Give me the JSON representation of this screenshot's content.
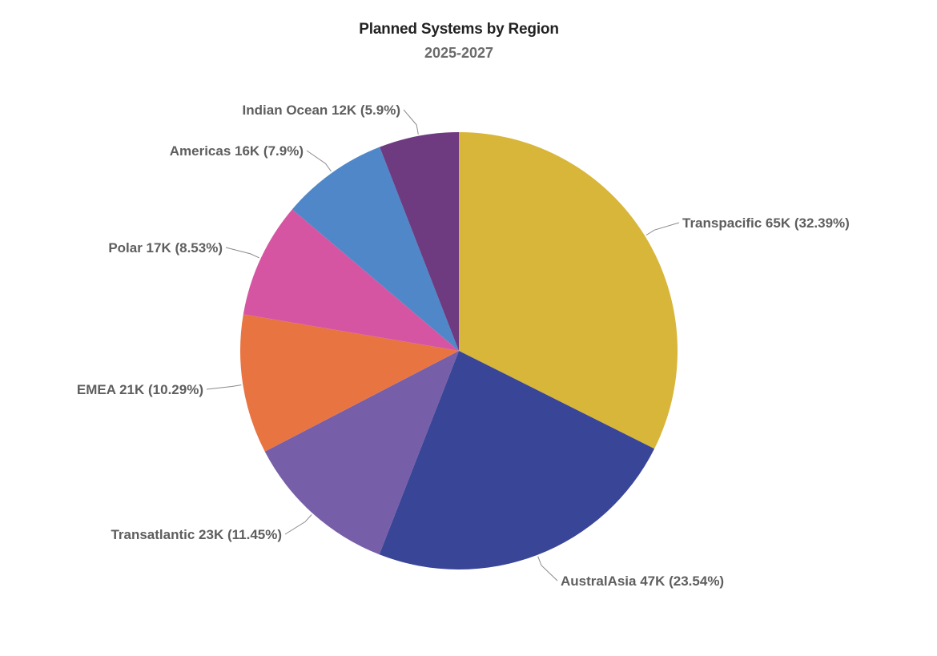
{
  "chart_data": {
    "type": "pie",
    "title": "Planned Systems by Region",
    "subtitle": "2025-2027",
    "slices": [
      {
        "name": "Transpacific",
        "value": 65,
        "display": "65K",
        "percent": "32.39%",
        "color": "#D8B63A"
      },
      {
        "name": "AustralAsia",
        "value": 47,
        "display": "47K",
        "percent": "23.54%",
        "color": "#394596"
      },
      {
        "name": "Transatlantic",
        "value": 23,
        "display": "23K",
        "percent": "11.45%",
        "color": "#765EA8"
      },
      {
        "name": "EMEA",
        "value": 21,
        "display": "21K",
        "percent": "10.29%",
        "color": "#E87442"
      },
      {
        "name": "Polar",
        "value": 17,
        "display": "17K",
        "percent": "8.53%",
        "color": "#D655A2"
      },
      {
        "name": "Americas",
        "value": 16,
        "display": "16K",
        "percent": "7.9%",
        "color": "#4F87C8"
      },
      {
        "name": "Indian Ocean",
        "value": 12,
        "display": "12K",
        "percent": "5.9%",
        "color": "#6E3A80"
      }
    ],
    "start_angle": "12 o'clock",
    "direction": "clockwise",
    "legend": "none"
  }
}
